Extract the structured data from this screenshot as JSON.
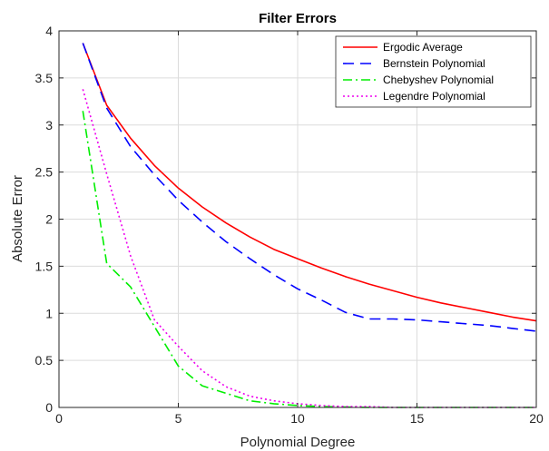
{
  "chart_data": {
    "type": "line",
    "title": "Filter Errors",
    "xlabel": "Polynomial Degree",
    "ylabel": "Absolute Error",
    "xlim": [
      0,
      20
    ],
    "ylim": [
      0,
      4
    ],
    "xticks": [
      "0",
      "5",
      "10",
      "15",
      "20"
    ],
    "yticks": [
      "0",
      "0.5",
      "1",
      "1.5",
      "2",
      "2.5",
      "3",
      "3.5",
      "4"
    ],
    "xtick_values": [
      0,
      5,
      10,
      15,
      20
    ],
    "ytick_values": [
      0,
      0.5,
      1,
      1.5,
      2,
      2.5,
      3,
      3.5,
      4
    ],
    "grid": true,
    "legend_position": "top-right",
    "series": [
      {
        "name": "Ergodic Average",
        "color": "#ff0000",
        "style": "solid",
        "x": [
          1,
          2,
          3,
          4,
          5,
          6,
          7,
          8,
          9,
          10,
          11,
          12,
          13,
          14,
          15,
          16,
          17,
          18,
          19,
          20
        ],
        "y": [
          3.87,
          3.21,
          2.86,
          2.57,
          2.33,
          2.13,
          1.96,
          1.81,
          1.68,
          1.58,
          1.48,
          1.39,
          1.31,
          1.24,
          1.17,
          1.11,
          1.06,
          1.01,
          0.96,
          0.92
        ]
      },
      {
        "name": "Bernstein Polynomial",
        "color": "#0000ff",
        "style": "dashed",
        "x": [
          1,
          2,
          3,
          4,
          5,
          6,
          7,
          8,
          9,
          10,
          11,
          12,
          13,
          14,
          15,
          16,
          17,
          18,
          19,
          20
        ],
        "y": [
          3.87,
          3.18,
          2.77,
          2.47,
          2.2,
          1.97,
          1.76,
          1.58,
          1.41,
          1.26,
          1.14,
          1.01,
          0.94,
          0.94,
          0.93,
          0.91,
          0.89,
          0.87,
          0.84,
          0.81
        ]
      },
      {
        "name": "Chebyshev Polynomial",
        "color": "#00ee00",
        "style": "dashdot",
        "x": [
          1,
          2,
          3,
          4,
          5,
          6,
          7,
          8,
          9,
          10,
          11,
          12,
          13,
          14,
          15,
          16,
          17,
          18,
          19,
          20
        ],
        "y": [
          3.15,
          1.53,
          1.28,
          0.86,
          0.44,
          0.23,
          0.15,
          0.07,
          0.04,
          0.02,
          0.01,
          0.005,
          0.0,
          0.0,
          0.0,
          0.0,
          0.0,
          0.0,
          0.0,
          0.0
        ]
      },
      {
        "name": "Legendre Polynomial",
        "color": "#ee00ee",
        "style": "dotted",
        "x": [
          1,
          2,
          3,
          4,
          5,
          6,
          7,
          8,
          9,
          10,
          11,
          12,
          13,
          14,
          15,
          16,
          17,
          18,
          19,
          20
        ],
        "y": [
          3.38,
          2.48,
          1.61,
          0.93,
          0.65,
          0.39,
          0.22,
          0.12,
          0.07,
          0.04,
          0.02,
          0.01,
          0.01,
          0.0,
          0.0,
          0.0,
          0.0,
          0.0,
          0.0,
          0.0
        ]
      }
    ]
  }
}
